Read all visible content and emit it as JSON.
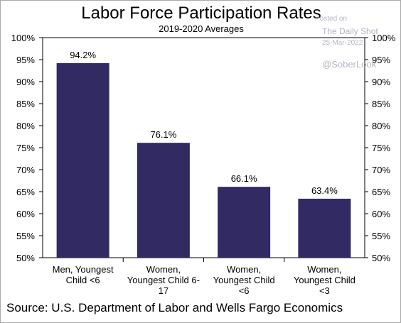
{
  "chart_data": {
    "type": "bar",
    "title": "Labor Force Participation Rates",
    "subtitle": "2019-2020 Averages",
    "categories": [
      [
        "Men, Youngest",
        "Child <6"
      ],
      [
        "Women,",
        "Youngest Child 6-",
        "17"
      ],
      [
        "Women,",
        "Youngest Child",
        "<6"
      ],
      [
        "Women,",
        "Youngest Child",
        "<3"
      ]
    ],
    "values": [
      94.2,
      76.1,
      66.1,
      63.4
    ],
    "data_labels": [
      "94.2%",
      "76.1%",
      "66.1%",
      "63.4%"
    ],
    "ylim": [
      50,
      100
    ],
    "yticks": [
      50,
      55,
      60,
      65,
      70,
      75,
      80,
      85,
      90,
      95,
      100
    ],
    "ytick_labels": [
      "50%",
      "55%",
      "60%",
      "65%",
      "70%",
      "75%",
      "80%",
      "85%",
      "90%",
      "95%",
      "100%"
    ],
    "ytick_side": "both",
    "grid": false,
    "bar_color": "#312a63"
  },
  "source": "Source: U.S. Department of Labor and Wells Fargo Economics",
  "watermark": {
    "line1": "Posted on",
    "line2": "The Daily Shot",
    "line3": "25-Mar-2022",
    "line4": "@SoberLook"
  }
}
